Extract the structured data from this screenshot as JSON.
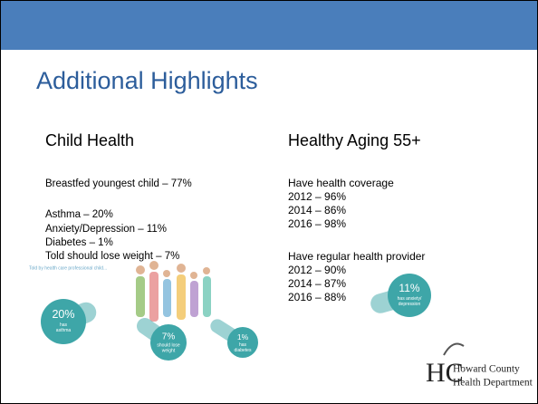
{
  "title": "Additional Highlights",
  "child_health": {
    "heading": "Child Health",
    "items": [
      "Breastfed youngest child – 77%",
      "Asthma – 20%",
      "Anxiety/Depression – 11%",
      "Diabetes – 1%",
      "Told should lose weight – 7%"
    ]
  },
  "healthy_aging": {
    "heading": "Healthy Aging 55+",
    "groups": [
      {
        "label": "Have health coverage",
        "rows": [
          "2012 – 96%",
          "2014 – 86%",
          "2016 – 98%"
        ]
      },
      {
        "label": "Have regular health provider",
        "rows": [
          "2012 – 90%",
          "2014 – 87%",
          "2016 – 88%"
        ]
      }
    ]
  },
  "infographic": {
    "caption": "Told by health care professional child...",
    "circles": [
      {
        "value": "20%",
        "lines": [
          "has",
          "asthma"
        ]
      },
      {
        "value": "7%",
        "lines": [
          "should lose",
          "weight"
        ]
      },
      {
        "value": "1%",
        "lines": [
          "has",
          "diabetes"
        ]
      },
      {
        "value": "11%",
        "lines": [
          "has anxiety/",
          "depression"
        ]
      }
    ]
  },
  "logo": {
    "initials": "HC",
    "lines": [
      "Howard County",
      "Health Department"
    ]
  }
}
